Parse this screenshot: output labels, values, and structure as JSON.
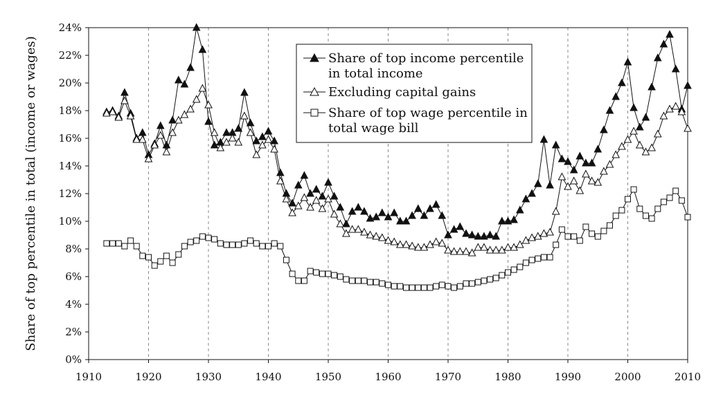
{
  "chart_data": {
    "type": "line",
    "title": "",
    "xlabel": "",
    "ylabel": "Share of top percentile in total (income or wages)",
    "xlim": [
      1910,
      2010
    ],
    "ylim": [
      0,
      24
    ],
    "x_ticks": [
      "1910",
      "1920",
      "1930",
      "1940",
      "1950",
      "1960",
      "1970",
      "1980",
      "1990",
      "2000",
      "2010"
    ],
    "y_ticks": [
      "0%",
      "2%",
      "4%",
      "6%",
      "8%",
      "10%",
      "12%",
      "14%",
      "16%",
      "18%",
      "20%",
      "22%",
      "24%"
    ],
    "grid": "vertical dashed",
    "legend_position": "top-center",
    "x": [
      1913,
      1914,
      1915,
      1916,
      1917,
      1918,
      1919,
      1920,
      1921,
      1922,
      1923,
      1924,
      1925,
      1926,
      1927,
      1928,
      1929,
      1930,
      1931,
      1932,
      1933,
      1934,
      1935,
      1936,
      1937,
      1938,
      1939,
      1940,
      1941,
      1942,
      1943,
      1944,
      1945,
      1946,
      1947,
      1948,
      1949,
      1950,
      1951,
      1952,
      1953,
      1954,
      1955,
      1956,
      1957,
      1958,
      1959,
      1960,
      1961,
      1962,
      1963,
      1964,
      1965,
      1966,
      1967,
      1968,
      1969,
      1970,
      1971,
      1972,
      1973,
      1974,
      1975,
      1976,
      1977,
      1978,
      1979,
      1980,
      1981,
      1982,
      1983,
      1984,
      1985,
      1986,
      1987,
      1988,
      1989,
      1990,
      1991,
      1992,
      1993,
      1994,
      1995,
      1996,
      1997,
      1998,
      1999,
      2000,
      2001,
      2002,
      2003,
      2004,
      2005,
      2006,
      2007,
      2008,
      2009,
      2010
    ],
    "series": [
      {
        "name": "Share of top income percentile in total income",
        "marker": "filled-triangle",
        "values": [
          17.9,
          18.0,
          17.6,
          19.3,
          17.8,
          16.0,
          16.4,
          14.8,
          15.6,
          16.9,
          15.5,
          17.3,
          20.2,
          19.9,
          21.1,
          24.0,
          22.4,
          17.2,
          15.5,
          15.7,
          16.4,
          16.4,
          16.7,
          19.3,
          17.1,
          15.8,
          16.1,
          16.5,
          15.8,
          13.5,
          12.0,
          11.3,
          12.6,
          13.3,
          12.0,
          12.3,
          11.8,
          12.8,
          11.8,
          11.0,
          9.8,
          10.7,
          11.0,
          10.7,
          10.2,
          10.3,
          10.6,
          10.3,
          10.6,
          10.0,
          10.0,
          10.4,
          10.9,
          10.4,
          10.9,
          11.2,
          10.4,
          9.0,
          9.4,
          9.6,
          9.1,
          9.0,
          8.9,
          8.9,
          9.0,
          8.9,
          10.0,
          10.0,
          10.1,
          10.8,
          11.6,
          12.0,
          12.7,
          15.9,
          12.6,
          15.5,
          14.5,
          14.3,
          13.7,
          14.7,
          14.2,
          14.2,
          15.2,
          16.6,
          18.0,
          19.0,
          20.0,
          21.5,
          18.2,
          16.8,
          17.5,
          19.7,
          21.8,
          22.8,
          23.5,
          21.0,
          18.1,
          19.8
        ]
      },
      {
        "name": "Excluding capital gains",
        "marker": "open-triangle",
        "values": [
          17.8,
          17.9,
          17.5,
          18.7,
          17.6,
          15.9,
          15.9,
          14.5,
          15.5,
          16.2,
          15.0,
          16.4,
          17.3,
          17.7,
          18.1,
          18.8,
          19.6,
          18.4,
          16.4,
          15.3,
          15.7,
          16.0,
          15.7,
          17.6,
          16.4,
          14.8,
          15.5,
          15.9,
          15.2,
          12.9,
          11.6,
          10.6,
          11.1,
          11.7,
          11.0,
          11.5,
          10.9,
          11.6,
          10.5,
          9.8,
          9.1,
          9.4,
          9.4,
          9.2,
          9.0,
          8.9,
          8.8,
          8.6,
          8.5,
          8.3,
          8.3,
          8.2,
          8.1,
          8.1,
          8.3,
          8.5,
          8.4,
          7.9,
          7.8,
          7.8,
          7.8,
          7.7,
          8.1,
          8.1,
          7.9,
          7.9,
          7.9,
          8.1,
          8.1,
          8.3,
          8.6,
          8.8,
          8.9,
          9.1,
          9.2,
          10.7,
          13.2,
          12.5,
          12.9,
          12.2,
          13.4,
          12.9,
          12.8,
          13.6,
          14.1,
          14.8,
          15.4,
          15.9,
          16.5,
          15.5,
          15.0,
          15.3,
          16.3,
          17.6,
          18.1,
          18.3,
          17.9,
          16.7
        ]
      },
      {
        "name": "Share of top wage percentile in total wage bill",
        "marker": "open-square",
        "values": [
          8.4,
          8.4,
          8.4,
          8.2,
          8.6,
          8.2,
          7.5,
          7.4,
          6.8,
          7.1,
          7.5,
          7.0,
          7.6,
          8.2,
          8.5,
          8.6,
          8.9,
          8.8,
          8.7,
          8.4,
          8.3,
          8.3,
          8.3,
          8.4,
          8.6,
          8.4,
          8.2,
          8.2,
          8.4,
          8.2,
          7.2,
          6.2,
          5.7,
          5.7,
          6.4,
          6.3,
          6.2,
          6.2,
          6.1,
          6.0,
          5.8,
          5.7,
          5.7,
          5.7,
          5.6,
          5.6,
          5.5,
          5.4,
          5.3,
          5.3,
          5.2,
          5.2,
          5.2,
          5.2,
          5.2,
          5.3,
          5.4,
          5.3,
          5.2,
          5.3,
          5.5,
          5.5,
          5.6,
          5.7,
          5.8,
          5.9,
          6.1,
          6.3,
          6.5,
          6.7,
          7.0,
          7.2,
          7.3,
          7.4,
          7.4,
          8.3,
          9.4,
          8.9,
          8.9,
          8.6,
          9.6,
          9.1,
          8.9,
          9.3,
          9.7,
          10.4,
          10.8,
          11.6,
          12.3,
          10.9,
          10.4,
          10.2,
          10.9,
          11.4,
          11.7,
          12.2,
          11.5,
          10.3
        ]
      }
    ]
  }
}
